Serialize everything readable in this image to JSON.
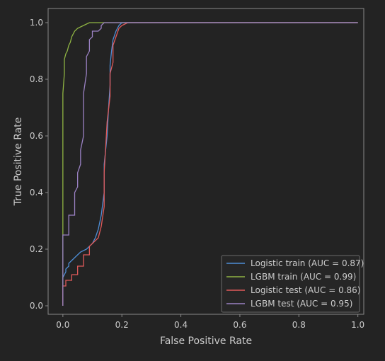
{
  "chart_data": {
    "type": "line",
    "title": "",
    "xlabel": "False Positive Rate",
    "ylabel": "True Positive Rate",
    "xlim": [
      -0.05,
      1.02
    ],
    "ylim": [
      -0.03,
      1.05
    ],
    "xticks": [
      0.0,
      0.2,
      0.4,
      0.6,
      0.8,
      1.0
    ],
    "yticks": [
      0.0,
      0.2,
      0.4,
      0.6,
      0.8,
      1.0
    ],
    "tick_labels_x": [
      "0.0",
      "0.2",
      "0.4",
      "0.6",
      "0.8",
      "1.0"
    ],
    "tick_labels_y": [
      "0.0",
      "0.2",
      "0.4",
      "0.6",
      "0.8",
      "1.0"
    ],
    "grid": false,
    "legend_position": "lower-right",
    "colors": {
      "background": "#232323",
      "axes_frame": "#8a8a8a",
      "text": "#cccccc"
    },
    "series": [
      {
        "name": "Logistic train (AUC = 0.87)",
        "color": "#4e8ed6",
        "x": [
          0.0,
          0.0,
          0.01,
          0.01,
          0.02,
          0.02,
          0.03,
          0.04,
          0.05,
          0.06,
          0.08,
          0.09,
          0.1,
          0.11,
          0.12,
          0.13,
          0.14,
          0.14,
          0.15,
          0.155,
          0.16,
          0.16,
          0.165,
          0.17,
          0.18,
          0.19,
          0.2,
          0.22,
          0.3,
          0.5,
          0.8,
          1.0
        ],
        "y": [
          0.0,
          0.1,
          0.12,
          0.13,
          0.14,
          0.15,
          0.16,
          0.17,
          0.18,
          0.19,
          0.2,
          0.21,
          0.22,
          0.24,
          0.27,
          0.32,
          0.4,
          0.5,
          0.6,
          0.7,
          0.78,
          0.85,
          0.9,
          0.94,
          0.97,
          0.99,
          1.0,
          1.0,
          1.0,
          1.0,
          1.0,
          1.0
        ]
      },
      {
        "name": "LGBM train (AUC = 0.99)",
        "color": "#8fb443",
        "x": [
          0.0,
          0.0,
          0.0,
          0.0,
          0.005,
          0.005,
          0.01,
          0.015,
          0.02,
          0.025,
          0.03,
          0.04,
          0.05,
          0.06,
          0.07,
          0.08,
          0.09,
          0.1,
          0.2,
          0.5,
          1.0
        ],
        "y": [
          0.0,
          0.4,
          0.6,
          0.75,
          0.82,
          0.87,
          0.89,
          0.9,
          0.92,
          0.93,
          0.95,
          0.97,
          0.98,
          0.985,
          0.99,
          0.995,
          1.0,
          1.0,
          1.0,
          1.0,
          1.0
        ]
      },
      {
        "name": "Logistic test (AUC = 0.86)",
        "color": "#e05a5a",
        "x": [
          0.0,
          0.0,
          0.01,
          0.01,
          0.03,
          0.03,
          0.05,
          0.05,
          0.07,
          0.07,
          0.09,
          0.09,
          0.1,
          0.12,
          0.13,
          0.14,
          0.14,
          0.15,
          0.16,
          0.16,
          0.17,
          0.17,
          0.18,
          0.19,
          0.2,
          0.22,
          0.5,
          1.0
        ],
        "y": [
          0.0,
          0.07,
          0.07,
          0.09,
          0.09,
          0.11,
          0.11,
          0.14,
          0.14,
          0.18,
          0.18,
          0.21,
          0.22,
          0.24,
          0.28,
          0.35,
          0.47,
          0.65,
          0.74,
          0.82,
          0.86,
          0.92,
          0.95,
          0.98,
          0.99,
          1.0,
          1.0,
          1.0
        ]
      },
      {
        "name": "LGBM test (AUC = 0.95)",
        "color": "#9b82c4",
        "x": [
          0.0,
          0.0,
          0.02,
          0.02,
          0.04,
          0.04,
          0.05,
          0.05,
          0.06,
          0.06,
          0.07,
          0.07,
          0.08,
          0.08,
          0.09,
          0.09,
          0.1,
          0.1,
          0.12,
          0.13,
          0.13,
          0.14,
          0.14,
          0.2,
          0.5,
          1.0
        ],
        "y": [
          0.0,
          0.25,
          0.25,
          0.32,
          0.32,
          0.4,
          0.42,
          0.47,
          0.5,
          0.55,
          0.6,
          0.75,
          0.82,
          0.88,
          0.9,
          0.94,
          0.95,
          0.97,
          0.97,
          0.98,
          0.99,
          1.0,
          1.0,
          1.0,
          1.0,
          1.0
        ]
      }
    ]
  }
}
